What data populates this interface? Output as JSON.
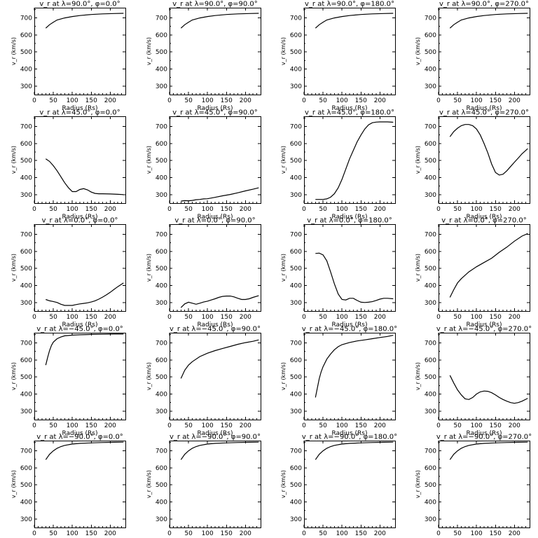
{
  "chart_data": [
    {
      "type": "line",
      "title": "v_r at λ=90.0°, φ=0.0°",
      "xlabel": "Radius (Rs)",
      "ylabel": "v_r (km/s)",
      "xlim": [
        0,
        240
      ],
      "ylim": [
        250,
        760
      ],
      "xticks": [
        0,
        50,
        100,
        150,
        200
      ],
      "yticks": [
        300,
        400,
        500,
        600,
        700
      ],
      "x": [
        30,
        40,
        50,
        60,
        80,
        100,
        120,
        150,
        180,
        210,
        235
      ],
      "y": [
        640,
        660,
        675,
        688,
        700,
        708,
        714,
        720,
        724,
        726,
        727
      ]
    },
    {
      "type": "line",
      "title": "v_r at λ=90.0°, φ=90.0°",
      "xlabel": "Radius (Rs)",
      "ylabel": "v_r (km/s)",
      "xlim": [
        0,
        240
      ],
      "ylim": [
        250,
        760
      ],
      "xticks": [
        0,
        50,
        100,
        150,
        200
      ],
      "yticks": [
        300,
        400,
        500,
        600,
        700
      ],
      "x": [
        30,
        40,
        50,
        60,
        80,
        100,
        120,
        150,
        180,
        210,
        235
      ],
      "y": [
        640,
        660,
        675,
        688,
        700,
        708,
        714,
        720,
        724,
        726,
        727
      ]
    },
    {
      "type": "line",
      "title": "v_r at λ=90.0°, φ=180.0°",
      "xlabel": "Radius (Rs)",
      "ylabel": "v_r (km/s)",
      "xlim": [
        0,
        240
      ],
      "ylim": [
        250,
        760
      ],
      "xticks": [
        0,
        50,
        100,
        150,
        200
      ],
      "yticks": [
        300,
        400,
        500,
        600,
        700
      ],
      "x": [
        30,
        40,
        50,
        60,
        80,
        100,
        120,
        150,
        180,
        210,
        235
      ],
      "y": [
        640,
        660,
        675,
        688,
        700,
        708,
        714,
        720,
        724,
        726,
        727
      ]
    },
    {
      "type": "line",
      "title": "v_r at λ=90.0°, φ=270.0°",
      "xlabel": "Radius (Rs)",
      "ylabel": "v_r (km/s)",
      "xlim": [
        0,
        240
      ],
      "ylim": [
        250,
        760
      ],
      "xticks": [
        0,
        50,
        100,
        150,
        200
      ],
      "yticks": [
        300,
        400,
        500,
        600,
        700
      ],
      "x": [
        30,
        40,
        50,
        60,
        80,
        100,
        120,
        150,
        180,
        210,
        235
      ],
      "y": [
        640,
        660,
        675,
        688,
        700,
        708,
        714,
        720,
        724,
        726,
        727
      ]
    },
    {
      "type": "line",
      "title": "v_r at λ=45.0°, φ=0.0°",
      "xlabel": "Radius (Rs)",
      "ylabel": "v_r (km/s)",
      "xlim": [
        0,
        240
      ],
      "ylim": [
        250,
        760
      ],
      "xticks": [
        0,
        50,
        100,
        150,
        200
      ],
      "yticks": [
        300,
        400,
        500,
        600,
        700
      ],
      "x": [
        30,
        40,
        50,
        60,
        70,
        80,
        90,
        100,
        110,
        120,
        130,
        140,
        150,
        160,
        170,
        180,
        200,
        220,
        235
      ],
      "y": [
        510,
        495,
        470,
        440,
        405,
        370,
        340,
        318,
        318,
        330,
        335,
        328,
        315,
        307,
        305,
        305,
        304,
        302,
        300
      ]
    },
    {
      "type": "line",
      "title": "v_r at λ=45.0°, φ=90.0°",
      "xlabel": "Radius (Rs)",
      "ylabel": "v_r (km/s)",
      "xlim": [
        0,
        240
      ],
      "ylim": [
        250,
        760
      ],
      "xticks": [
        0,
        50,
        100,
        150,
        200
      ],
      "yticks": [
        300,
        400,
        500,
        600,
        700
      ],
      "x": [
        30,
        40,
        50,
        60,
        70,
        80,
        90,
        100,
        120,
        140,
        160,
        180,
        200,
        220,
        235
      ],
      "y": [
        262,
        265,
        264,
        266,
        270,
        272,
        275,
        276,
        284,
        293,
        301,
        311,
        322,
        332,
        340
      ]
    },
    {
      "type": "line",
      "title": "v_r at λ=45.0°, φ=180.0°",
      "xlabel": "Radius (Rs)",
      "ylabel": "v_r (km/s)",
      "xlim": [
        0,
        240
      ],
      "ylim": [
        250,
        760
      ],
      "xticks": [
        0,
        50,
        100,
        150,
        200
      ],
      "yticks": [
        300,
        400,
        500,
        600,
        700
      ],
      "x": [
        30,
        40,
        50,
        60,
        70,
        80,
        90,
        100,
        110,
        120,
        130,
        140,
        150,
        160,
        170,
        180,
        190,
        200,
        210,
        220,
        235
      ],
      "y": [
        272,
        272,
        272,
        275,
        285,
        305,
        340,
        390,
        450,
        510,
        560,
        610,
        650,
        685,
        710,
        722,
        726,
        727,
        727,
        727,
        725
      ]
    },
    {
      "type": "line",
      "title": "v_r at λ=45.0°, φ=270.0°",
      "xlabel": "Radius (Rs)",
      "ylabel": "v_r (km/s)",
      "xlim": [
        0,
        240
      ],
      "ylim": [
        250,
        760
      ],
      "xticks": [
        0,
        50,
        100,
        150,
        200
      ],
      "yticks": [
        300,
        400,
        500,
        600,
        700
      ],
      "x": [
        30,
        40,
        50,
        60,
        70,
        80,
        90,
        100,
        110,
        120,
        130,
        140,
        150,
        160,
        170,
        180,
        190,
        200,
        210,
        220,
        235
      ],
      "y": [
        640,
        670,
        690,
        705,
        712,
        712,
        705,
        685,
        650,
        600,
        545,
        480,
        430,
        415,
        420,
        440,
        465,
        490,
        515,
        540,
        570
      ]
    },
    {
      "type": "line",
      "title": "v_r at λ=0.0°, φ=0.0°",
      "xlabel": "Radius (Rs)",
      "ylabel": "v_r (km/s)",
      "xlim": [
        0,
        240
      ],
      "ylim": [
        250,
        760
      ],
      "xticks": [
        0,
        50,
        100,
        150,
        200
      ],
      "yticks": [
        300,
        400,
        500,
        600,
        700
      ],
      "x": [
        30,
        40,
        50,
        60,
        70,
        80,
        90,
        100,
        110,
        120,
        130,
        140,
        150,
        160,
        170,
        180,
        190,
        200,
        210,
        220,
        235
      ],
      "y": [
        318,
        310,
        306,
        300,
        290,
        283,
        283,
        283,
        288,
        292,
        295,
        298,
        303,
        310,
        320,
        332,
        345,
        360,
        377,
        393,
        415
      ]
    },
    {
      "type": "line",
      "title": "v_r at λ=0.0°, φ=90.0°",
      "xlabel": "Radius (Rs)",
      "ylabel": "v_r (km/s)",
      "xlim": [
        0,
        240
      ],
      "ylim": [
        250,
        760
      ],
      "xticks": [
        0,
        50,
        100,
        150,
        200
      ],
      "yticks": [
        300,
        400,
        500,
        600,
        700
      ],
      "x": [
        30,
        40,
        50,
        60,
        70,
        80,
        90,
        100,
        110,
        120,
        130,
        140,
        150,
        160,
        170,
        180,
        190,
        200,
        210,
        220,
        235
      ],
      "y": [
        270,
        292,
        302,
        296,
        290,
        296,
        303,
        308,
        315,
        322,
        330,
        336,
        338,
        338,
        333,
        325,
        318,
        318,
        322,
        330,
        340
      ]
    },
    {
      "type": "line",
      "title": "v_r at λ=0.0°, φ=180.0°",
      "xlabel": "Radius (Rs)",
      "ylabel": "v_r (km/s)",
      "xlim": [
        0,
        240
      ],
      "ylim": [
        250,
        760
      ],
      "xticks": [
        0,
        50,
        100,
        150,
        200
      ],
      "yticks": [
        300,
        400,
        500,
        600,
        700
      ],
      "x": [
        30,
        40,
        50,
        60,
        70,
        80,
        90,
        100,
        110,
        120,
        130,
        140,
        150,
        160,
        170,
        180,
        190,
        200,
        210,
        220,
        235
      ],
      "y": [
        588,
        590,
        580,
        545,
        480,
        410,
        350,
        318,
        315,
        325,
        325,
        312,
        302,
        300,
        302,
        305,
        312,
        320,
        325,
        325,
        322
      ]
    },
    {
      "type": "line",
      "title": "v_r at λ=0.0°, φ=270.0°",
      "xlabel": "Radius (Rs)",
      "ylabel": "v_r (km/s)",
      "xlim": [
        0,
        240
      ],
      "ylim": [
        250,
        760
      ],
      "xticks": [
        0,
        50,
        100,
        150,
        200
      ],
      "yticks": [
        300,
        400,
        500,
        600,
        700
      ],
      "x": [
        30,
        40,
        50,
        60,
        80,
        100,
        120,
        140,
        160,
        180,
        200,
        220,
        235
      ],
      "y": [
        330,
        375,
        415,
        440,
        480,
        510,
        535,
        560,
        595,
        625,
        660,
        690,
        705
      ]
    },
    {
      "type": "line",
      "title": "v_r at λ=−45.0°, φ=0.0°",
      "xlabel": "Radius (Rs)",
      "ylabel": "v_r (km/s)",
      "xlim": [
        0,
        240
      ],
      "ylim": [
        250,
        760
      ],
      "xticks": [
        0,
        50,
        100,
        150,
        200
      ],
      "yticks": [
        300,
        400,
        500,
        600,
        700
      ],
      "x": [
        30,
        35,
        40,
        45,
        50,
        60,
        70,
        80,
        100,
        120,
        150,
        180,
        210,
        235
      ],
      "y": [
        570,
        615,
        655,
        685,
        705,
        725,
        735,
        742,
        746,
        748,
        750,
        751,
        752,
        752
      ]
    },
    {
      "type": "line",
      "title": "v_r at λ=−45.0°, φ=90.0°",
      "xlabel": "Radius (Rs)",
      "ylabel": "v_r (km/s)",
      "xlim": [
        0,
        240
      ],
      "ylim": [
        250,
        760
      ],
      "xticks": [
        0,
        50,
        100,
        150,
        200
      ],
      "yticks": [
        300,
        400,
        500,
        600,
        700
      ],
      "x": [
        30,
        40,
        50,
        60,
        80,
        100,
        120,
        140,
        160,
        180,
        200,
        220,
        235
      ],
      "y": [
        492,
        540,
        570,
        590,
        620,
        640,
        655,
        668,
        680,
        692,
        702,
        710,
        718
      ]
    },
    {
      "type": "line",
      "title": "v_r at λ=−45.0°, φ=180.0°",
      "xlabel": "Radius (Rs)",
      "ylabel": "v_r (km/s)",
      "xlim": [
        0,
        240
      ],
      "ylim": [
        250,
        760
      ],
      "xticks": [
        0,
        50,
        100,
        150,
        200
      ],
      "yticks": [
        300,
        400,
        500,
        600,
        700
      ],
      "x": [
        30,
        35,
        40,
        45,
        50,
        60,
        70,
        80,
        90,
        100,
        120,
        140,
        160,
        180,
        200,
        220,
        235
      ],
      "y": [
        380,
        435,
        490,
        530,
        560,
        605,
        635,
        660,
        678,
        690,
        703,
        712,
        718,
        725,
        732,
        738,
        745
      ]
    },
    {
      "type": "line",
      "title": "v_r at λ=−45.0°, φ=270.0°",
      "xlabel": "Radius (Rs)",
      "ylabel": "v_r (km/s)",
      "xlim": [
        0,
        240
      ],
      "ylim": [
        250,
        760
      ],
      "xticks": [
        0,
        50,
        100,
        150,
        200
      ],
      "yticks": [
        300,
        400,
        500,
        600,
        700
      ],
      "x": [
        30,
        40,
        50,
        60,
        70,
        80,
        90,
        100,
        110,
        120,
        130,
        140,
        150,
        160,
        170,
        180,
        190,
        200,
        210,
        220,
        235
      ],
      "y": [
        510,
        465,
        425,
        395,
        372,
        368,
        380,
        400,
        413,
        418,
        416,
        408,
        395,
        380,
        368,
        358,
        350,
        346,
        350,
        358,
        375
      ]
    },
    {
      "type": "line",
      "title": "v_r at λ=−90.0°, φ=0.0°",
      "xlabel": "Radius (Rs)",
      "ylabel": "v_r (km/s)",
      "xlim": [
        0,
        240
      ],
      "ylim": [
        250,
        760
      ],
      "xticks": [
        0,
        50,
        100,
        150,
        200
      ],
      "yticks": [
        300,
        400,
        500,
        600,
        700
      ],
      "x": [
        30,
        40,
        50,
        60,
        70,
        80,
        100,
        120,
        150,
        180,
        210,
        235
      ],
      "y": [
        648,
        680,
        700,
        715,
        725,
        732,
        740,
        744,
        747,
        749,
        750,
        751
      ]
    },
    {
      "type": "line",
      "title": "v_r at λ=−90.0°, φ=90.0°",
      "xlabel": "Radius (Rs)",
      "ylabel": "v_r (km/s)",
      "xlim": [
        0,
        240
      ],
      "ylim": [
        250,
        760
      ],
      "xticks": [
        0,
        50,
        100,
        150,
        200
      ],
      "yticks": [
        300,
        400,
        500,
        600,
        700
      ],
      "x": [
        30,
        40,
        50,
        60,
        70,
        80,
        100,
        120,
        150,
        180,
        210,
        235
      ],
      "y": [
        648,
        680,
        700,
        715,
        725,
        732,
        740,
        744,
        747,
        749,
        750,
        751
      ]
    },
    {
      "type": "line",
      "title": "v_r at λ=−90.0°, φ=180.0°",
      "xlabel": "Radius (Rs)",
      "ylabel": "v_r (km/s)",
      "xlim": [
        0,
        240
      ],
      "ylim": [
        250,
        760
      ],
      "xticks": [
        0,
        50,
        100,
        150,
        200
      ],
      "yticks": [
        300,
        400,
        500,
        600,
        700
      ],
      "x": [
        30,
        40,
        50,
        60,
        70,
        80,
        100,
        120,
        150,
        180,
        210,
        235
      ],
      "y": [
        648,
        680,
        700,
        715,
        725,
        732,
        740,
        744,
        747,
        749,
        750,
        751
      ]
    },
    {
      "type": "line",
      "title": "v_r at λ=−90.0°, φ=270.0°",
      "xlabel": "Radius (Rs)",
      "ylabel": "v_r (km/s)",
      "xlim": [
        0,
        240
      ],
      "ylim": [
        250,
        760
      ],
      "xticks": [
        0,
        50,
        100,
        150,
        200
      ],
      "yticks": [
        300,
        400,
        500,
        600,
        700
      ],
      "x": [
        30,
        40,
        50,
        60,
        70,
        80,
        100,
        120,
        150,
        180,
        210,
        235
      ],
      "y": [
        648,
        680,
        700,
        715,
        725,
        732,
        740,
        744,
        747,
        749,
        750,
        751
      ]
    }
  ]
}
